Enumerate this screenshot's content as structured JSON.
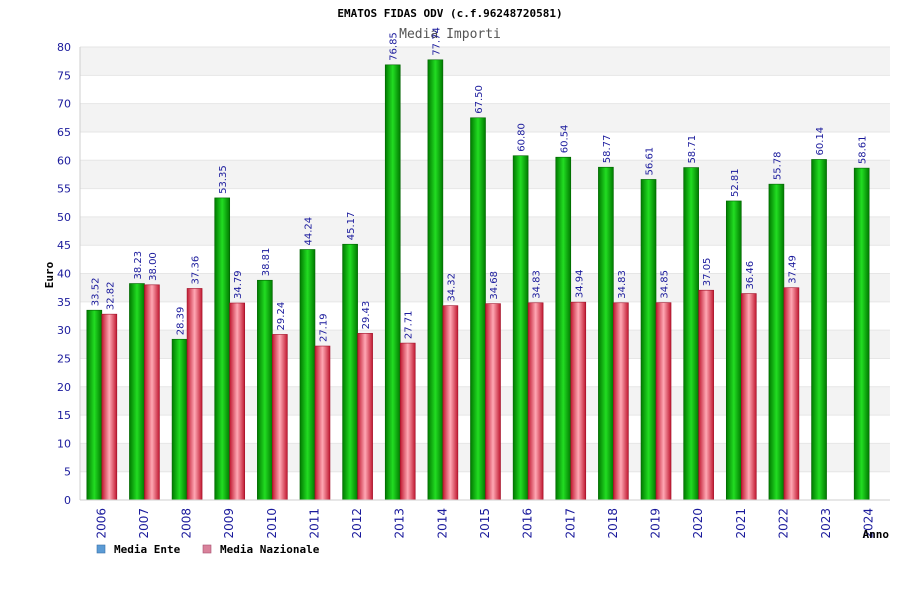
{
  "header": {
    "title": "EMATOS FIDAS ODV (c.f.96248720581)",
    "subtitle": "Media Importi"
  },
  "colors": {
    "ente": "#00aa00",
    "nazionale": "#e0405a",
    "legend_ente": "#5b9bd5",
    "legend_nazionale": "#d9829b",
    "band": "#f3f3f3",
    "axis": "#cfcfcf",
    "label": "#1a1a9c"
  },
  "chart_data": {
    "type": "bar",
    "title": "EMATOS FIDAS ODV (c.f.96248720581)",
    "subtitle": "Media Importi",
    "xlabel": "Anno",
    "ylabel": "Euro",
    "ylim": [
      0,
      80
    ],
    "ytick_step": 5,
    "grid": true,
    "legend_position": "bottom-left",
    "categories": [
      "2006",
      "2007",
      "2008",
      "2009",
      "2010",
      "2011",
      "2012",
      "2013",
      "2014",
      "2015",
      "2016",
      "2017",
      "2018",
      "2019",
      "2020",
      "2021",
      "2022",
      "2023",
      "2024"
    ],
    "series": [
      {
        "name": "Media Ente",
        "values": [
          33.52,
          38.23,
          28.39,
          53.35,
          38.81,
          44.24,
          45.17,
          76.85,
          77.74,
          67.5,
          60.8,
          60.54,
          58.77,
          56.61,
          58.71,
          52.81,
          55.78,
          60.14,
          58.61
        ]
      },
      {
        "name": "Media Nazionale",
        "values": [
          32.82,
          38.0,
          37.36,
          34.79,
          29.24,
          27.19,
          29.43,
          27.71,
          34.32,
          34.68,
          34.83,
          34.94,
          34.83,
          34.85,
          37.05,
          36.46,
          37.49,
          null,
          null
        ]
      }
    ],
    "labels": {
      "Media Ente": [
        "33.52",
        "38.23",
        "28.39",
        "53.35",
        "38.81",
        "44.24",
        "45.17",
        "76.85",
        "77.74",
        "67.50",
        "60.80",
        "60.54",
        "58.77",
        "56.61",
        "58.71",
        "52.81",
        "55.78",
        "60.14",
        "58.61"
      ],
      "Media Nazionale": [
        "32.82",
        "38.00",
        "37.36",
        "34.79",
        "29.24",
        "27.19",
        "29.43",
        "27.71",
        "34.32",
        "34.68",
        "34.83",
        "34.94",
        "34.83",
        "34.85",
        "37.05",
        "36.46",
        "37.49",
        "",
        ""
      ]
    }
  }
}
